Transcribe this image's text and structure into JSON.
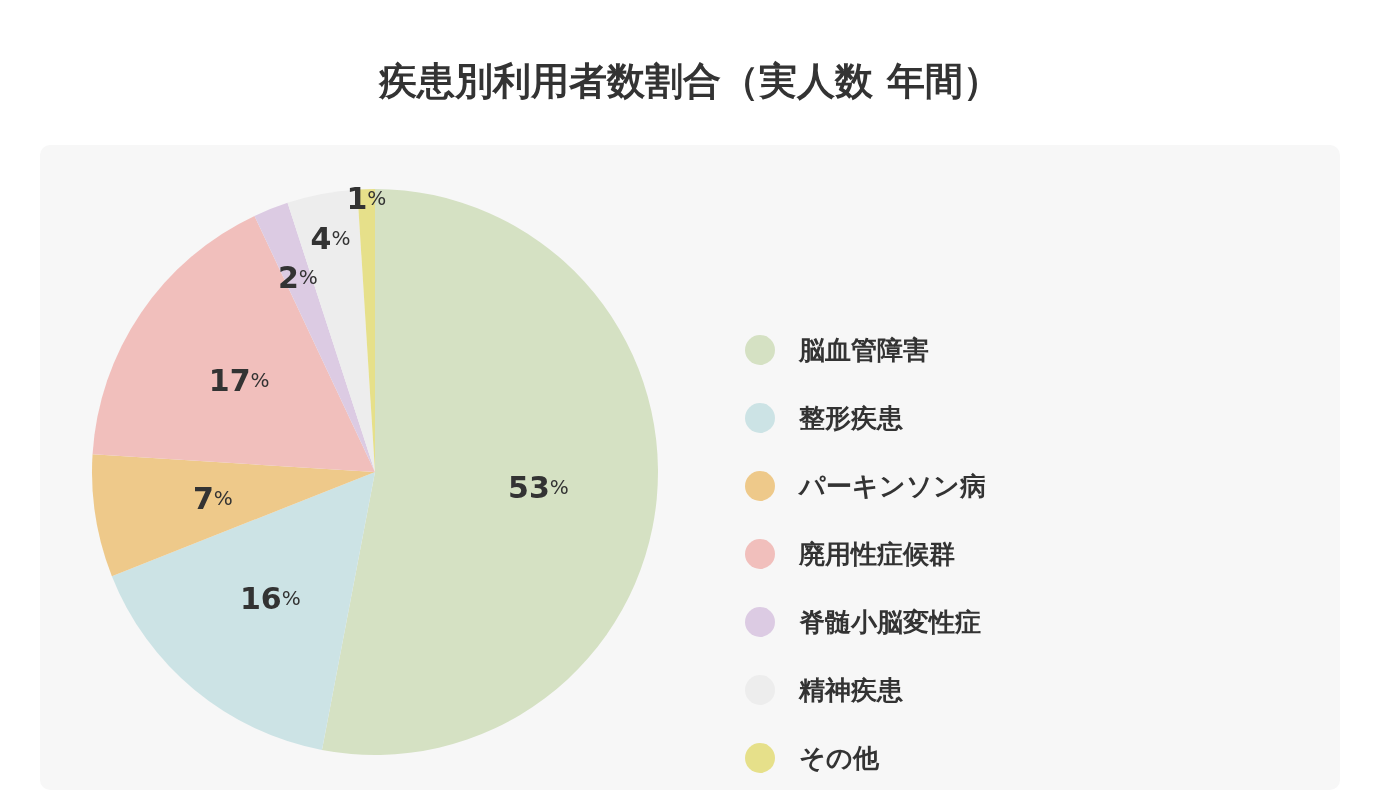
{
  "chart_data": {
    "type": "pie",
    "title": "疾患別利用者数割合（実人数 年間）",
    "categories": [
      "脳血管障害",
      "整形疾患",
      "パーキンソン病",
      "廃用性症候群",
      "脊髄小脳変性症",
      "精神疾患",
      "その他"
    ],
    "values": [
      53,
      16,
      7,
      17,
      2,
      4,
      1
    ],
    "colors": [
      "#d5e1c3",
      "#cce3e5",
      "#eec98a",
      "#f1bfbc",
      "#dccbe3",
      "#ededed",
      "#e6e08a"
    ],
    "value_labels": [
      "53%",
      "16%",
      "7%",
      "17%",
      "2%",
      "4%",
      "1%"
    ],
    "legend": "right"
  }
}
